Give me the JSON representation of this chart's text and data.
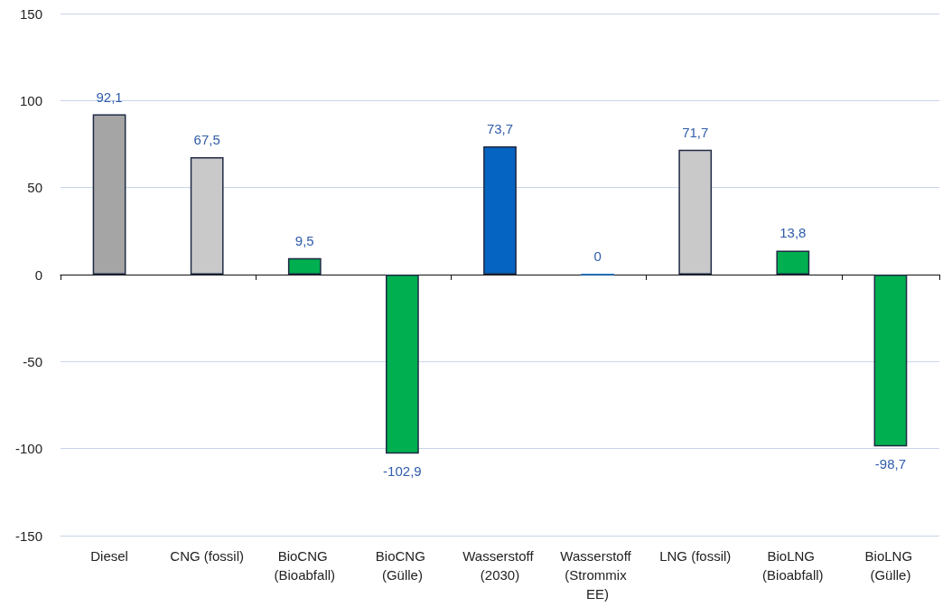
{
  "chart_data": {
    "type": "bar",
    "categories": [
      "Diesel",
      "CNG (fossil)",
      "BioCNG (Bioabfall)",
      "BioCNG (Gülle)",
      "Wasserstoff (2030)",
      "Wasserstoff (Strommix EE)",
      "LNG (fossil)",
      "BioLNG (Bioabfall)",
      "BioLNG (Gülle)"
    ],
    "values": [
      92.1,
      67.5,
      9.5,
      -102.9,
      73.7,
      0,
      71.7,
      13.8,
      -98.7
    ],
    "colors": [
      "#a5a5a5",
      "#c9c9c9",
      "#00b050",
      "#00b050",
      "#0563c1",
      "#0563c1",
      "#c9c9c9",
      "#00b050",
      "#00b050"
    ],
    "value_labels": [
      "92,1",
      "67,5",
      "9,5",
      "-102,9",
      "73,7",
      "0",
      "71,7",
      "13,8",
      "-98,7"
    ],
    "ylim": [
      -150,
      150
    ],
    "yticks": [
      -150,
      -100,
      -50,
      0,
      50,
      100,
      150
    ],
    "grid": "y"
  }
}
